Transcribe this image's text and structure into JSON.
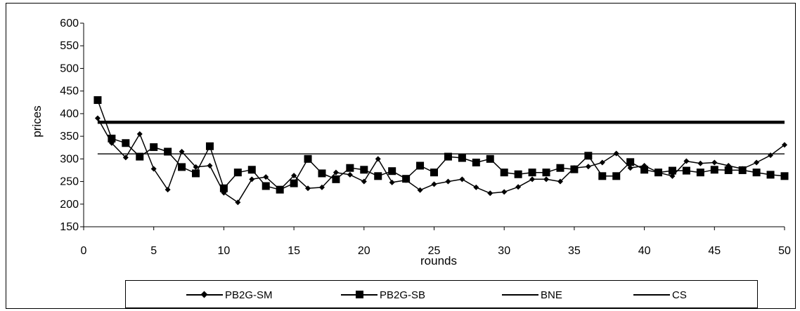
{
  "chart_data": {
    "type": "line",
    "title": "",
    "xlabel": "rounds",
    "ylabel": "prices",
    "xlim": [
      0,
      50
    ],
    "ylim": [
      150,
      600
    ],
    "xticks": [
      0,
      5,
      10,
      15,
      20,
      25,
      30,
      35,
      40,
      45,
      50
    ],
    "yticks": [
      150,
      200,
      250,
      300,
      350,
      400,
      450,
      500,
      550,
      600
    ],
    "grid": false,
    "legend_position": "bottom",
    "series": [
      {
        "name": "PB2G-SM",
        "marker": "diamond",
        "color": "#000000",
        "x": [
          1,
          2,
          3,
          4,
          5,
          6,
          7,
          8,
          9,
          10,
          11,
          12,
          13,
          14,
          15,
          16,
          17,
          18,
          19,
          20,
          21,
          22,
          23,
          24,
          25,
          26,
          27,
          28,
          29,
          30,
          31,
          32,
          33,
          34,
          35,
          36,
          37,
          38,
          39,
          40,
          41,
          42,
          43,
          44,
          45,
          46,
          47,
          48,
          49,
          50
        ],
        "values": [
          390,
          335,
          303,
          355,
          278,
          232,
          316,
          282,
          285,
          225,
          204,
          255,
          260,
          232,
          263,
          235,
          237,
          270,
          265,
          250,
          300,
          248,
          253,
          231,
          244,
          250,
          255,
          237,
          224,
          227,
          238,
          255,
          255,
          250,
          280,
          283,
          292,
          312,
          280,
          285,
          270,
          262,
          295,
          290,
          292,
          285,
          278,
          292,
          308,
          331
        ]
      },
      {
        "name": "PB2G-SB",
        "marker": "square",
        "color": "#000000",
        "x": [
          1,
          2,
          3,
          4,
          5,
          6,
          7,
          8,
          9,
          10,
          11,
          12,
          13,
          14,
          15,
          16,
          17,
          18,
          19,
          20,
          21,
          22,
          23,
          24,
          25,
          26,
          27,
          28,
          29,
          30,
          31,
          32,
          33,
          34,
          35,
          36,
          37,
          38,
          39,
          40,
          41,
          42,
          43,
          44,
          45,
          46,
          47,
          48,
          49,
          50
        ],
        "values": [
          430,
          345,
          335,
          305,
          326,
          316,
          282,
          268,
          328,
          235,
          270,
          276,
          240,
          232,
          246,
          300,
          268,
          255,
          280,
          276,
          262,
          273,
          256,
          285,
          270,
          305,
          302,
          292,
          300,
          270,
          266,
          270,
          270,
          280,
          277,
          307,
          262,
          262,
          293,
          276,
          270,
          274,
          274,
          270,
          276,
          275,
          275,
          270,
          265,
          262
        ]
      },
      {
        "name": "BNE",
        "marker": "none",
        "color": "#000000",
        "x": [
          1,
          50
        ],
        "values": [
          381,
          381
        ]
      },
      {
        "name": "CS",
        "marker": "none",
        "color": "#000000",
        "x": [
          1,
          50
        ],
        "values": [
          311,
          311
        ]
      }
    ]
  }
}
